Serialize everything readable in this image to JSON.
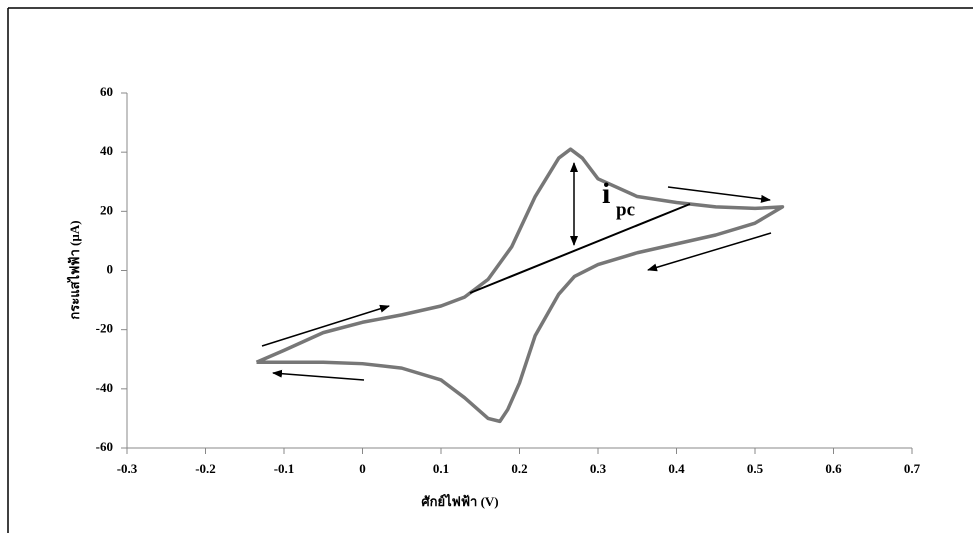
{
  "chart_data": {
    "type": "line",
    "xlabel": "ศักย์ไฟฟ้า (V)",
    "ylabel": "กระแสไฟฟ้า (µA)",
    "x": [
      -0.135,
      -0.1,
      -0.05,
      0,
      0.05,
      0.1,
      0.13,
      0.16,
      0.19,
      0.22,
      0.25,
      0.265,
      0.28,
      0.3,
      0.35,
      0.4,
      0.45,
      0.5,
      0.535,
      0.5,
      0.45,
      0.4,
      0.35,
      0.3,
      0.27,
      0.25,
      0.22,
      0.2,
      0.185,
      0.175,
      0.16,
      0.13,
      0.1,
      0.05,
      0,
      -0.05,
      -0.1,
      -0.135
    ],
    "values": [
      -31,
      -27,
      -21,
      -17.5,
      -15,
      -12,
      -9,
      -3,
      8,
      25,
      38,
      41,
      38,
      31,
      25,
      23,
      21.5,
      21,
      21.5,
      16,
      12,
      9,
      6,
      2,
      -2,
      -8,
      -22,
      -38,
      -47,
      -51,
      -50,
      -43,
      -37,
      -33,
      -31.5,
      -31,
      -31,
      -31
    ],
    "color": "#777777",
    "annotation": {
      "text": "i",
      "subscript": "pc"
    },
    "xlim": [
      -0.3,
      0.7
    ],
    "xticks": [
      -0.3,
      -0.2,
      -0.1,
      0,
      0.1,
      0.2,
      0.3,
      0.4,
      0.5,
      0.6,
      0.7
    ],
    "ylim": [
      -60,
      60
    ],
    "yticks": [
      -60,
      -40,
      -20,
      0,
      20,
      40,
      60
    ]
  }
}
